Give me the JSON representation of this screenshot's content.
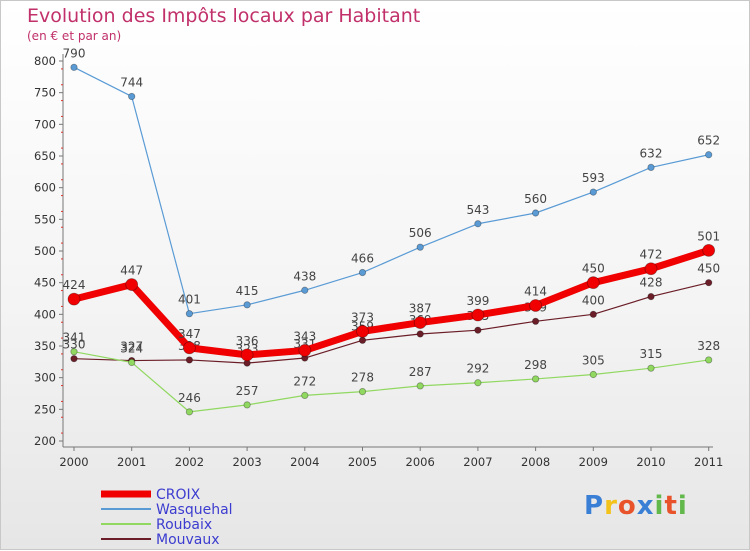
{
  "chart_data": {
    "type": "line",
    "title": "Evolution des Impôts locaux par Habitant",
    "subtitle": "(en € et par an)",
    "categories": [
      "2000",
      "2001",
      "2002",
      "2003",
      "2004",
      "2005",
      "2006",
      "2007",
      "2008",
      "2009",
      "2010",
      "2011"
    ],
    "ylim": [
      200,
      800
    ],
    "yticks": [
      200,
      250,
      300,
      350,
      400,
      450,
      500,
      550,
      600,
      650,
      700,
      750,
      800
    ],
    "grid": false,
    "legend_position": "bottom-left",
    "series": [
      {
        "name": "Mouvaux",
        "color": "#6b1e28",
        "values": [
          330,
          327,
          328,
          323,
          331,
          359,
          369,
          375,
          389,
          400,
          428,
          450
        ]
      },
      {
        "name": "Roubaix",
        "color": "#90d860",
        "values": [
          341,
          324,
          246,
          257,
          272,
          278,
          287,
          292,
          298,
          305,
          315,
          328
        ]
      },
      {
        "name": "Wasquehal",
        "color": "#5a9bd5",
        "values": [
          790,
          744,
          401,
          415,
          438,
          466,
          506,
          543,
          560,
          593,
          632,
          652
        ]
      },
      {
        "name": "CROIX",
        "color": "#f00000",
        "values": [
          424,
          447,
          347,
          336,
          343,
          373,
          387,
          399,
          414,
          450,
          472,
          501
        ]
      }
    ],
    "legend_order": [
      "CROIX",
      "Wasquehal",
      "Roubaix",
      "Mouvaux"
    ]
  },
  "logo_text": "Proxiti",
  "logo_colors": [
    "#3a7fd6",
    "#f3c21b",
    "#e8532b",
    "#3a7fd6",
    "#62b84b",
    "#e8532b",
    "#62b84b"
  ]
}
